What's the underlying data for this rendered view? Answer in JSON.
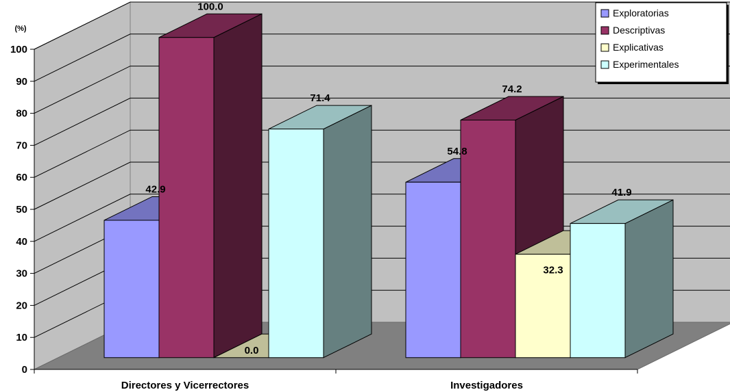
{
  "chart_data": {
    "type": "bar",
    "ylabel": "(%)",
    "ylim": [
      0,
      100
    ],
    "yticks": [
      0,
      10,
      20,
      30,
      40,
      50,
      60,
      70,
      80,
      90,
      100
    ],
    "grid": true,
    "legend_position": "top-right",
    "categories": [
      "Directores y Vicerrectores",
      "Investigadores"
    ],
    "series": [
      {
        "name": "Exploratorias",
        "values": [
          42.9,
          54.8
        ],
        "labels": [
          "42.9",
          "54.8"
        ],
        "color": "#9999FF"
      },
      {
        "name": "Descriptivas",
        "values": [
          100.0,
          74.2
        ],
        "labels": [
          "100.0",
          "74.2"
        ],
        "color": "#993366"
      },
      {
        "name": "Explicativas",
        "values": [
          0.0,
          32.3
        ],
        "labels": [
          "0.0",
          "32.3"
        ],
        "color": "#FFFFCC"
      },
      {
        "name": "Experimentales",
        "values": [
          71.4,
          41.9
        ],
        "labels": [
          "71.4",
          "41.9"
        ],
        "color": "#CCFFFF"
      }
    ]
  }
}
